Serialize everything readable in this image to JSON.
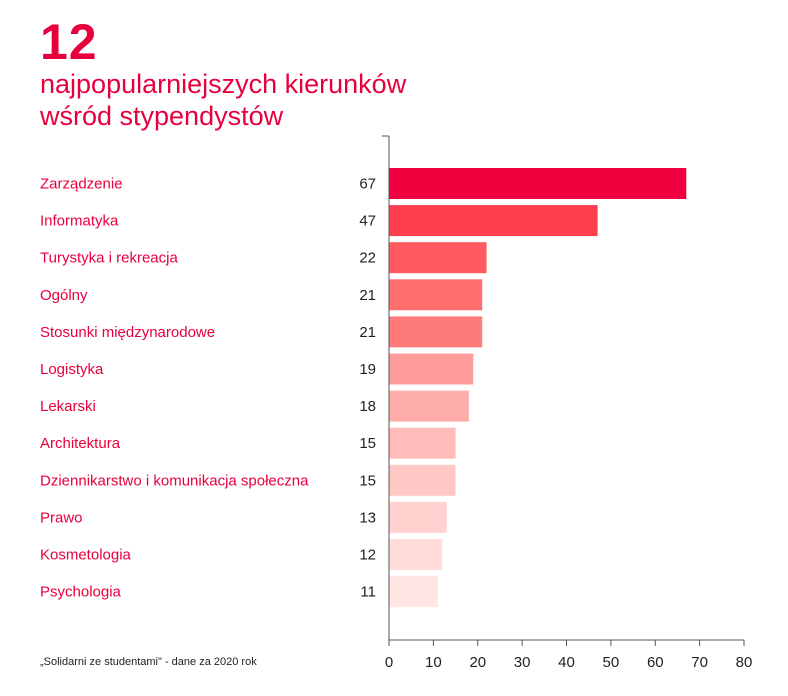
{
  "header": {
    "big_number": "12",
    "title_line1": "najpopularniejszych kierunków",
    "title_line2": "wśród stypendystów"
  },
  "footer": {
    "source": "„Solidarni ze studentami\" - dane za 2020 rok"
  },
  "colors": {
    "accent": "#e8003d",
    "bar_gradient": [
      "#f0003f",
      "#ff3d4e",
      "#ff5a5f",
      "#ff6f6f",
      "#ff7b7b",
      "#ff9c9c",
      "#ffadab",
      "#ffbcb9",
      "#ffc8c5",
      "#ffd2cf",
      "#ffddda",
      "#ffe6e3"
    ]
  },
  "chart_data": {
    "type": "bar",
    "orientation": "horizontal",
    "title": "12 najpopularniejszych kierunków wśród stypendystów",
    "categories": [
      "Zarządzenie",
      "Informatyka",
      "Turystyka i rekreacja",
      "Ogólny",
      "Stosunki międzynarodowe",
      "Logistyka",
      "Lekarski",
      "Architektura",
      "Dziennikarstwo i komunikacja społeczna",
      "Prawo",
      "Kosmetologia",
      "Psychologia"
    ],
    "values": [
      67,
      47,
      22,
      21,
      21,
      19,
      18,
      15,
      15,
      13,
      12,
      11
    ],
    "xlim": [
      0,
      80
    ],
    "xticks": [
      0,
      10,
      20,
      30,
      40,
      50,
      60,
      70,
      80
    ],
    "xlabel": "",
    "ylabel": "",
    "grid": false,
    "legend": "none"
  }
}
